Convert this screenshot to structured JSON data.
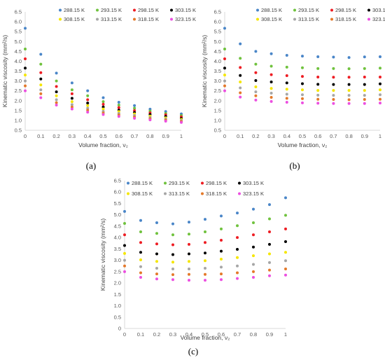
{
  "temperatures": [
    {
      "name": "288.15 K",
      "color": "#4a86c8"
    },
    {
      "name": "293.15 K",
      "color": "#70c23e"
    },
    {
      "name": "298.15 K",
      "color": "#ee1d23"
    },
    {
      "name": "303.15 K",
      "color": "#000000"
    },
    {
      "name": "308.15 K",
      "color": "#f5e600"
    },
    {
      "name": "313.15 K",
      "color": "#a6a6a6"
    },
    {
      "name": "318.15 K",
      "color": "#e4792a"
    },
    {
      "name": "323.15 K",
      "color": "#ec4fe0"
    }
  ],
  "chart_data": [
    {
      "type": "scatter",
      "panel_label": "(a)",
      "xlabel": "Volume fraction, ν₂",
      "ylabel": "Kinematic viscosity (mm²/s)",
      "xlim": [
        0,
        1
      ],
      "ylim": [
        0.5,
        6.5
      ],
      "x_ticks": [
        "0",
        "0.1",
        "0.2",
        "0.3",
        "0.4",
        "0.5",
        "0.6",
        "0.7",
        "0.8",
        "0.9",
        "1"
      ],
      "y_ticks": [
        "0.5",
        "1.0",
        "1.5",
        "2.0",
        "2.5",
        "3.0",
        "3.5",
        "4.0",
        "4.5",
        "5.0",
        "5.5",
        "6.0",
        "6.5"
      ],
      "legend": "top",
      "x": [
        0,
        0.1,
        0.2,
        0.3,
        0.4,
        0.5,
        0.6,
        0.7,
        0.8,
        0.9,
        1.0
      ],
      "series": [
        {
          "name": "288.15 K",
          "values": [
            5.67,
            4.35,
            3.4,
            2.9,
            2.5,
            2.15,
            1.92,
            1.75,
            1.57,
            1.45,
            1.33
          ]
        },
        {
          "name": "293.15 K",
          "values": [
            4.62,
            3.85,
            3.0,
            2.55,
            2.25,
            1.95,
            1.78,
            1.62,
            1.47,
            1.35,
            1.25
          ]
        },
        {
          "name": "298.15 K",
          "values": [
            4.12,
            3.42,
            2.72,
            2.35,
            2.05,
            1.82,
            1.65,
            1.5,
            1.38,
            1.28,
            1.18
          ]
        },
        {
          "name": "303.15 K",
          "values": [
            3.65,
            3.1,
            2.45,
            2.12,
            1.88,
            1.68,
            1.52,
            1.4,
            1.3,
            1.2,
            1.1
          ]
        },
        {
          "name": "308.15 K",
          "values": [
            3.3,
            2.8,
            2.25,
            1.95,
            1.75,
            1.58,
            1.45,
            1.33,
            1.22,
            1.13,
            1.05
          ]
        },
        {
          "name": "313.15 K",
          "values": [
            3.0,
            2.55,
            2.05,
            1.8,
            1.62,
            1.46,
            1.35,
            1.25,
            1.15,
            1.07,
            1.0
          ]
        },
        {
          "name": "318.15 K",
          "values": [
            2.75,
            2.35,
            1.9,
            1.68,
            1.52,
            1.38,
            1.28,
            1.18,
            1.09,
            1.02,
            0.95
          ]
        },
        {
          "name": "323.15 K",
          "values": [
            2.5,
            2.15,
            1.78,
            1.58,
            1.42,
            1.3,
            1.2,
            1.11,
            1.03,
            0.96,
            0.9
          ]
        }
      ]
    },
    {
      "type": "scatter",
      "panel_label": "(b)",
      "xlabel": "Volume fraction, ν₂",
      "ylabel": "Kinematic viscosity (mm²/s)",
      "xlim": [
        0,
        1
      ],
      "ylim": [
        0.5,
        6.5
      ],
      "x_ticks": [
        "0",
        "0.1",
        "0.2",
        "0.3",
        "0.4",
        "0.5",
        "0.6",
        "0.7",
        "0.8",
        "0.9",
        "1"
      ],
      "y_ticks": [
        "0.5",
        "1.0",
        "1.5",
        "2.0",
        "2.5",
        "3.0",
        "3.5",
        "4.0",
        "4.5",
        "5.0",
        "5.5",
        "6.0",
        "6.5"
      ],
      "legend": "top",
      "x": [
        0,
        0.1,
        0.2,
        0.3,
        0.4,
        0.5,
        0.6,
        0.7,
        0.8,
        0.9,
        1.0
      ],
      "series": [
        {
          "name": "288.15 K",
          "values": [
            5.67,
            4.88,
            4.5,
            4.38,
            4.3,
            4.26,
            4.23,
            4.21,
            4.19,
            4.22,
            4.23
          ]
        },
        {
          "name": "293.15 K",
          "values": [
            4.62,
            4.15,
            3.85,
            3.75,
            3.7,
            3.67,
            3.63,
            3.63,
            3.62,
            3.63,
            3.65
          ]
        },
        {
          "name": "298.15 K",
          "values": [
            4.12,
            3.68,
            3.42,
            3.32,
            3.27,
            3.23,
            3.2,
            3.19,
            3.19,
            3.2,
            3.2
          ]
        },
        {
          "name": "303.15 K",
          "values": [
            3.65,
            3.28,
            3.02,
            2.95,
            2.9,
            2.86,
            2.83,
            2.82,
            2.82,
            2.82,
            2.85
          ]
        },
        {
          "name": "308.15 K",
          "values": [
            3.3,
            2.95,
            2.7,
            2.62,
            2.58,
            2.55,
            2.52,
            2.52,
            2.52,
            2.52,
            2.55
          ]
        },
        {
          "name": "313.15 K",
          "values": [
            3.0,
            2.65,
            2.45,
            2.38,
            2.33,
            2.3,
            2.28,
            2.27,
            2.27,
            2.27,
            2.3
          ]
        },
        {
          "name": "318.15 K",
          "values": [
            2.75,
            2.4,
            2.25,
            2.17,
            2.12,
            2.1,
            2.07,
            2.06,
            2.05,
            2.06,
            2.07
          ]
        },
        {
          "name": "323.15 K",
          "values": [
            2.5,
            2.18,
            2.03,
            1.96,
            1.92,
            1.89,
            1.87,
            1.86,
            1.86,
            1.86,
            1.88
          ]
        }
      ]
    },
    {
      "type": "scatter",
      "panel_label": "(c)",
      "xlabel": "Volume fraction, ν₂",
      "ylabel": "Kinematic viscosity (mm²/s)",
      "xlim": [
        0,
        1
      ],
      "ylim": [
        0,
        6.5
      ],
      "x_ticks": [
        "0",
        "0.1",
        "0.2",
        "0.3",
        "0.4",
        "0.5",
        "0.6",
        "0.7",
        "0.8",
        "0.9",
        "1"
      ],
      "y_ticks": [
        "0",
        "0.5",
        "1.0",
        "1.5",
        "2.0",
        "2.5",
        "3.0",
        "3.5",
        "4.0",
        "4.5",
        "5.0",
        "5.5",
        "6.0",
        "6.5"
      ],
      "legend": "top",
      "x": [
        0,
        0.1,
        0.2,
        0.3,
        0.4,
        0.5,
        0.6,
        0.7,
        0.8,
        0.9,
        1.0
      ],
      "series": [
        {
          "name": "288.15 K",
          "values": [
            5.15,
            4.75,
            4.65,
            4.6,
            4.68,
            4.8,
            4.95,
            5.08,
            5.25,
            5.45,
            5.75
          ]
        },
        {
          "name": "293.15 K",
          "values": [
            4.62,
            4.25,
            4.18,
            4.12,
            4.15,
            4.25,
            4.38,
            4.52,
            4.65,
            4.82,
            4.98
          ]
        },
        {
          "name": "298.15 K",
          "values": [
            4.12,
            3.78,
            3.72,
            3.68,
            3.7,
            3.78,
            3.88,
            4.0,
            4.12,
            4.25,
            4.38
          ]
        },
        {
          "name": "303.15 K",
          "values": [
            3.65,
            3.35,
            3.28,
            3.25,
            3.28,
            3.32,
            3.4,
            3.48,
            3.58,
            3.7,
            3.82
          ]
        },
        {
          "name": "308.15 K",
          "values": [
            3.3,
            3.02,
            2.95,
            2.92,
            2.95,
            2.98,
            3.05,
            3.12,
            3.2,
            3.28,
            3.35
          ]
        },
        {
          "name": "313.15 K",
          "values": [
            3.0,
            2.72,
            2.65,
            2.62,
            2.62,
            2.65,
            2.7,
            2.75,
            2.82,
            2.9,
            2.98
          ]
        },
        {
          "name": "318.15 K",
          "values": [
            2.75,
            2.45,
            2.4,
            2.37,
            2.38,
            2.38,
            2.4,
            2.45,
            2.5,
            2.57,
            2.62
          ]
        },
        {
          "name": "323.15 K",
          "values": [
            2.5,
            2.25,
            2.18,
            2.15,
            2.12,
            2.12,
            2.15,
            2.2,
            2.25,
            2.32,
            2.35
          ]
        }
      ]
    }
  ]
}
